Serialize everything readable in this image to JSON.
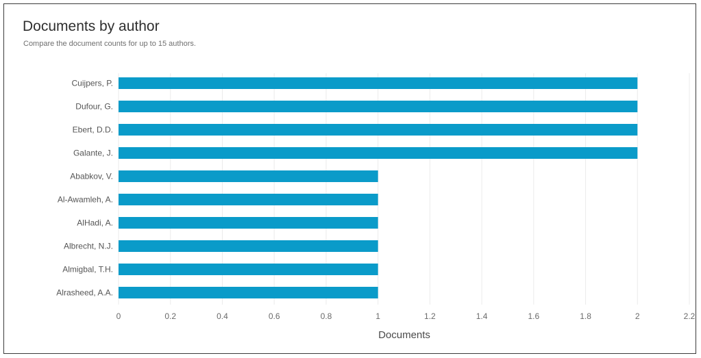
{
  "title": "Documents by author",
  "subtitle": "Compare the document counts for up to 15 authors.",
  "chart_data": {
    "type": "bar",
    "orientation": "horizontal",
    "title": "Documents by author",
    "subtitle": "Compare the document counts for up to 15 authors.",
    "categories": [
      "Cuijpers, P.",
      "Dufour, G.",
      "Ebert, D.D.",
      "Galante, J.",
      "Ababkov, V.",
      "Al-Awamleh, A.",
      "AlHadi, A.",
      "Albrecht, N.J.",
      "Almigbal, T.H.",
      "Alrasheed, A.A."
    ],
    "values": [
      2,
      2,
      2,
      2,
      1,
      1,
      1,
      1,
      1,
      1
    ],
    "xlabel": "Documents",
    "ylabel": "",
    "xlim": [
      0,
      2.2
    ],
    "xticks": [
      "0",
      "0.2",
      "0.4",
      "0.6",
      "0.8",
      "1",
      "1.2",
      "1.4",
      "1.6",
      "1.8",
      "2",
      "2.2"
    ],
    "grid": "vertical",
    "legend": "none",
    "bar_color": "#0a9bc9"
  }
}
